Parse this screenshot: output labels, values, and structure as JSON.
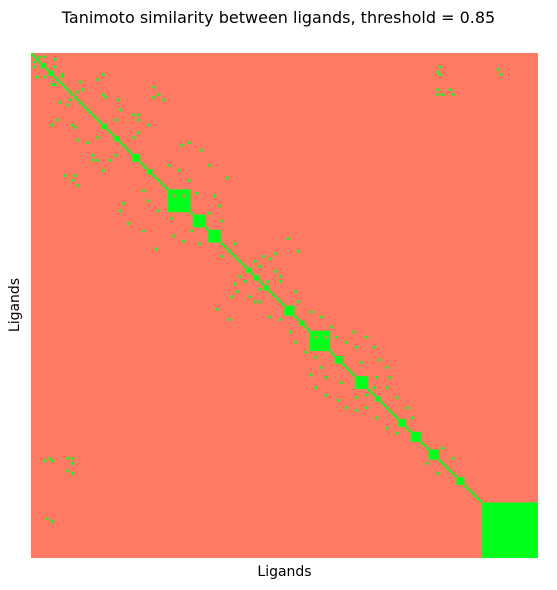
{
  "chart_data": {
    "type": "heatmap",
    "title": "Tanimoto similarity between ligands, threshold = 0.85",
    "xlabel": "Ligands",
    "ylabel": "Ligands",
    "n": 200,
    "colors": {
      "below_threshold": "#FF7A62",
      "above_threshold": "#00FF1A"
    },
    "ticks": "none",
    "grid": false,
    "legend": "none",
    "blocks": [
      [
        0,
        1
      ],
      [
        2,
        3
      ],
      [
        4,
        6
      ],
      [
        7,
        9
      ],
      [
        10,
        11
      ],
      [
        28,
        30
      ],
      [
        33,
        35
      ],
      [
        40,
        43
      ],
      [
        46,
        48
      ],
      [
        54,
        63
      ],
      [
        64,
        69
      ],
      [
        70,
        75
      ],
      [
        85,
        87
      ],
      [
        88,
        90
      ],
      [
        92,
        94
      ],
      [
        100,
        104
      ],
      [
        106,
        108
      ],
      [
        110,
        118
      ],
      [
        120,
        123
      ],
      [
        128,
        133
      ],
      [
        136,
        138
      ],
      [
        145,
        148
      ],
      [
        150,
        154
      ],
      [
        157,
        161
      ],
      [
        168,
        171
      ],
      [
        178,
        200
      ]
    ],
    "cross_pairs": [
      [
        1,
        3
      ],
      [
        1,
        5
      ],
      [
        2,
        9
      ],
      [
        5,
        9
      ],
      [
        8,
        12
      ],
      [
        9,
        12
      ],
      [
        14,
        20
      ],
      [
        15,
        18
      ],
      [
        16,
        28
      ],
      [
        17,
        29
      ],
      [
        18,
        34
      ],
      [
        22,
        35
      ],
      [
        24,
        40
      ],
      [
        26,
        42
      ],
      [
        28,
        46
      ],
      [
        28,
        8
      ],
      [
        33,
        40
      ],
      [
        44,
        54
      ],
      [
        46,
        58
      ],
      [
        50,
        62
      ],
      [
        55,
        65
      ],
      [
        56,
        72
      ],
      [
        60,
        74
      ],
      [
        63,
        70
      ],
      [
        66,
        75
      ],
      [
        75,
        80
      ],
      [
        82,
        88
      ],
      [
        84,
        90
      ],
      [
        86,
        96
      ],
      [
        88,
        98
      ],
      [
        90,
        98
      ],
      [
        94,
        104
      ],
      [
        98,
        105
      ],
      [
        102,
        110
      ],
      [
        104,
        114
      ],
      [
        108,
        118
      ],
      [
        112,
        120
      ],
      [
        114,
        124
      ],
      [
        116,
        128
      ],
      [
        122,
        130
      ],
      [
        128,
        136
      ],
      [
        132,
        140
      ],
      [
        136,
        144
      ],
      [
        140,
        148
      ],
      [
        144,
        150
      ],
      [
        156,
        162
      ],
      [
        160,
        166
      ],
      [
        7,
        160
      ],
      [
        8,
        161
      ],
      [
        5,
        161
      ]
    ],
    "scattered_cells": [
      [
        13,
        48
      ],
      [
        17,
        48
      ],
      [
        24,
        42
      ],
      [
        19,
        11
      ],
      [
        26,
        10
      ],
      [
        33,
        26
      ],
      [
        31,
        42
      ],
      [
        59,
        36
      ],
      [
        62,
        35
      ],
      [
        67,
        38
      ],
      [
        70,
        44
      ],
      [
        77,
        49
      ],
      [
        80,
        91
      ],
      [
        84,
        90
      ],
      [
        90,
        93
      ],
      [
        94,
        81
      ],
      [
        96,
        79
      ],
      [
        101,
        73
      ],
      [
        105,
        78
      ],
      [
        112,
        132
      ],
      [
        116,
        135
      ],
      [
        121,
        137
      ],
      [
        124,
        140
      ],
      [
        127,
        110
      ],
      [
        135,
        132
      ],
      [
        141,
        128
      ],
      [
        160,
        16
      ],
      [
        162,
        16
      ],
      [
        186,
        196
      ],
      [
        190,
        194
      ],
      [
        182,
        188
      ],
      [
        14,
        160
      ],
      [
        16,
        162
      ],
      [
        165,
        14
      ],
      [
        166,
        16
      ],
      [
        6,
        184
      ],
      [
        8,
        185
      ],
      [
        16,
        50
      ],
      [
        18,
        52
      ]
    ]
  }
}
